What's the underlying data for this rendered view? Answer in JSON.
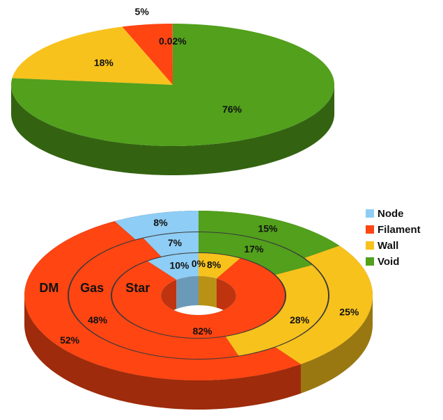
{
  "chart_data": [
    {
      "type": "pie",
      "values": [
        0.02,
        5,
        18,
        76
      ],
      "value_labels": [
        "0.02%",
        "5%",
        "18%",
        "76%"
      ],
      "colors": [
        "#8ecdf5",
        "#ff4512",
        "#f7c21c",
        "#52a01c"
      ]
    },
    {
      "type": "donut",
      "categories": [
        "Node",
        "Filament",
        "Wall",
        "Void"
      ],
      "colors": [
        "#8ecdf5",
        "#ff4512",
        "#f7c21c",
        "#52a01c"
      ],
      "series": [
        {
          "name": "DM",
          "values": [
            8,
            52,
            25,
            15
          ],
          "value_labels": [
            "8%",
            "52%",
            "25%",
            "15%"
          ]
        },
        {
          "name": "Gas",
          "values": [
            7,
            48,
            28,
            17
          ],
          "value_labels": [
            "7%",
            "48%",
            "28%",
            "17%"
          ]
        },
        {
          "name": "Star",
          "values": [
            10,
            82,
            8,
            0
          ],
          "value_labels": [
            "10%",
            "82%",
            "8%",
            "0%"
          ]
        }
      ],
      "legend": "top-right"
    }
  ]
}
